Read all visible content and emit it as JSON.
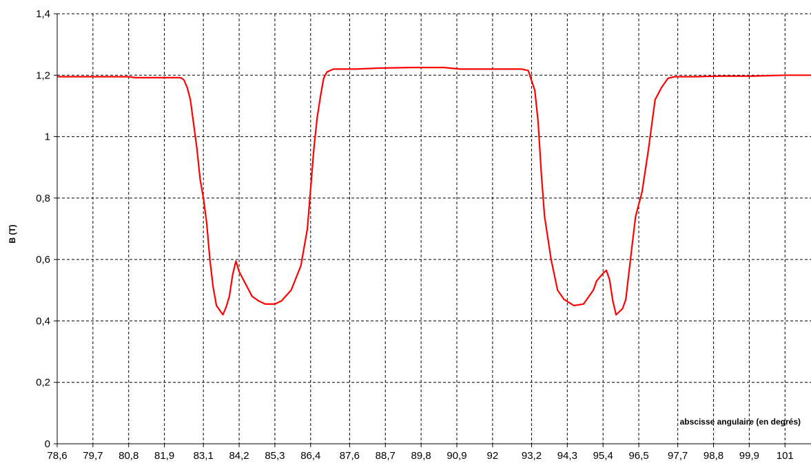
{
  "chart_data": {
    "type": "line",
    "title": "",
    "xlabel": "abscisse angulaire (en degrés)",
    "ylabel": "B (T)",
    "xlim": [
      78.6,
      101.8
    ],
    "ylim": [
      0,
      1.4
    ],
    "grid": true,
    "line_color": "#ff0000",
    "x_ticks": [
      {
        "v": 78.6,
        "label": "78,6"
      },
      {
        "v": 79.7,
        "label": "79,7"
      },
      {
        "v": 80.8,
        "label": "80,8"
      },
      {
        "v": 81.9,
        "label": "81,9"
      },
      {
        "v": 83.1,
        "label": "83,1"
      },
      {
        "v": 84.2,
        "label": "84,2"
      },
      {
        "v": 85.3,
        "label": "85,3"
      },
      {
        "v": 86.4,
        "label": "86,4"
      },
      {
        "v": 87.6,
        "label": "87,6"
      },
      {
        "v": 88.7,
        "label": "88,7"
      },
      {
        "v": 89.8,
        "label": "89,8"
      },
      {
        "v": 90.9,
        "label": "90,9"
      },
      {
        "v": 92.0,
        "label": "92"
      },
      {
        "v": 93.2,
        "label": "93,2"
      },
      {
        "v": 94.3,
        "label": "94,3"
      },
      {
        "v": 95.4,
        "label": "95,4"
      },
      {
        "v": 96.5,
        "label": "96,5"
      },
      {
        "v": 97.7,
        "label": "97,7"
      },
      {
        "v": 98.8,
        "label": "98,8"
      },
      {
        "v": 99.9,
        "label": "99,9"
      },
      {
        "v": 101.0,
        "label": "101"
      }
    ],
    "y_ticks": [
      {
        "v": 0,
        "label": "0"
      },
      {
        "v": 0.2,
        "label": "0,2"
      },
      {
        "v": 0.4,
        "label": "0,4"
      },
      {
        "v": 0.6,
        "label": "0,6"
      },
      {
        "v": 0.8,
        "label": "0,8"
      },
      {
        "v": 1.0,
        "label": "1"
      },
      {
        "v": 1.2,
        "label": "1,2"
      },
      {
        "v": 1.4,
        "label": "1,4"
      }
    ],
    "series": [
      {
        "points": [
          [
            78.6,
            1.195
          ],
          [
            80.8,
            1.195
          ],
          [
            81.0,
            1.192
          ],
          [
            82.4,
            1.192
          ],
          [
            82.5,
            1.185
          ],
          [
            82.6,
            1.16
          ],
          [
            82.7,
            1.12
          ],
          [
            82.8,
            1.04
          ],
          [
            82.9,
            0.96
          ],
          [
            83.0,
            0.86
          ],
          [
            83.1,
            0.8
          ],
          [
            83.2,
            0.72
          ],
          [
            83.3,
            0.6
          ],
          [
            83.4,
            0.51
          ],
          [
            83.5,
            0.45
          ],
          [
            83.6,
            0.435
          ],
          [
            83.7,
            0.42
          ],
          [
            83.8,
            0.445
          ],
          [
            83.9,
            0.48
          ],
          [
            84.0,
            0.55
          ],
          [
            84.1,
            0.595
          ],
          [
            84.2,
            0.56
          ],
          [
            84.3,
            0.54
          ],
          [
            84.4,
            0.52
          ],
          [
            84.6,
            0.48
          ],
          [
            84.8,
            0.465
          ],
          [
            85.0,
            0.455
          ],
          [
            85.3,
            0.455
          ],
          [
            85.5,
            0.465
          ],
          [
            85.8,
            0.5
          ],
          [
            86.1,
            0.58
          ],
          [
            86.3,
            0.7
          ],
          [
            86.5,
            0.96
          ],
          [
            86.6,
            1.06
          ],
          [
            86.7,
            1.13
          ],
          [
            86.8,
            1.19
          ],
          [
            86.9,
            1.21
          ],
          [
            87.1,
            1.22
          ],
          [
            87.8,
            1.22
          ],
          [
            88.5,
            1.223
          ],
          [
            89.5,
            1.225
          ],
          [
            90.5,
            1.225
          ],
          [
            91.0,
            1.22
          ],
          [
            92.0,
            1.22
          ],
          [
            92.9,
            1.22
          ],
          [
            93.1,
            1.215
          ],
          [
            93.3,
            1.15
          ],
          [
            93.4,
            1.05
          ],
          [
            93.5,
            0.88
          ],
          [
            93.6,
            0.74
          ],
          [
            93.8,
            0.6
          ],
          [
            94.0,
            0.5
          ],
          [
            94.2,
            0.47
          ],
          [
            94.5,
            0.45
          ],
          [
            94.8,
            0.455
          ],
          [
            95.1,
            0.5
          ],
          [
            95.2,
            0.53
          ],
          [
            95.4,
            0.555
          ],
          [
            95.5,
            0.565
          ],
          [
            95.6,
            0.535
          ],
          [
            95.7,
            0.465
          ],
          [
            95.8,
            0.42
          ],
          [
            96.0,
            0.44
          ],
          [
            96.1,
            0.47
          ],
          [
            96.2,
            0.56
          ],
          [
            96.3,
            0.65
          ],
          [
            96.4,
            0.74
          ],
          [
            96.6,
            0.82
          ],
          [
            96.8,
            0.96
          ],
          [
            97.0,
            1.12
          ],
          [
            97.2,
            1.16
          ],
          [
            97.4,
            1.19
          ],
          [
            97.6,
            1.195
          ],
          [
            98.2,
            1.195
          ],
          [
            99.0,
            1.197
          ],
          [
            100.0,
            1.197
          ],
          [
            101.0,
            1.2
          ],
          [
            101.8,
            1.2
          ]
        ]
      }
    ]
  }
}
